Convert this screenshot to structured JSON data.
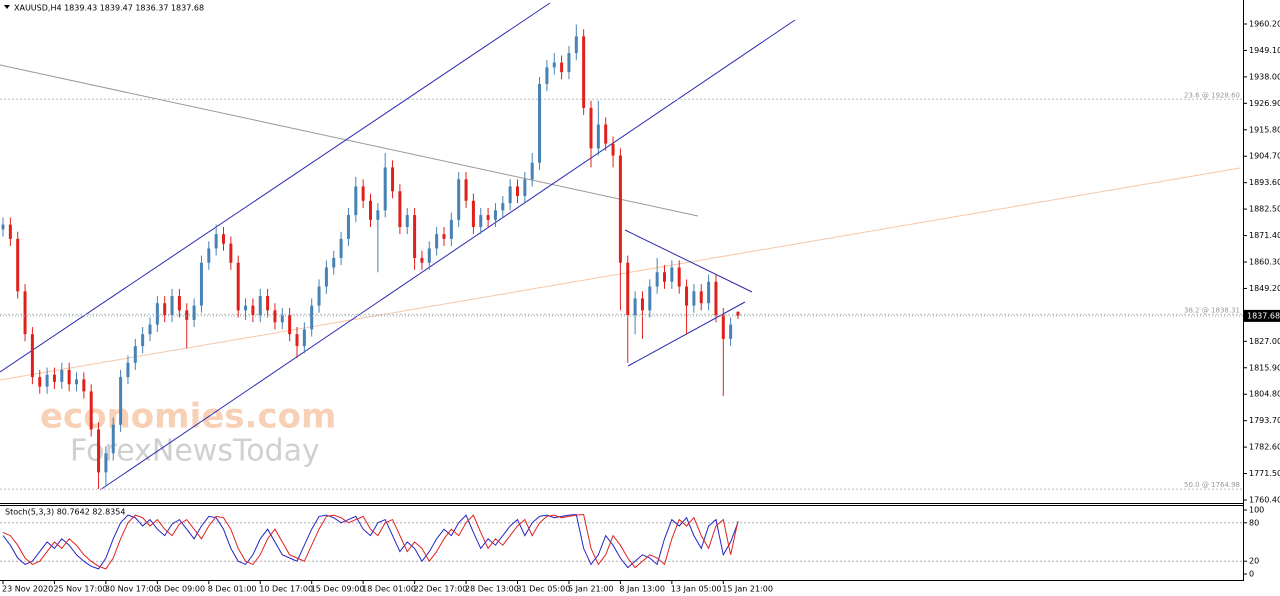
{
  "chart_data": [
    {
      "type": "candlestick",
      "title": "XAUUSD,H4  1839.43 1839.47 1836.37 1837.68",
      "watermark": [
        "economies.com",
        "ForexNewsToday"
      ],
      "up_color": "#4682b4",
      "down_color": "#e0201b",
      "categories": [
        "23 Nov 2020",
        null,
        null,
        null,
        null,
        null,
        null,
        "25 Nov 17:00",
        null,
        null,
        null,
        null,
        null,
        null,
        "30 Nov 17:00",
        null,
        null,
        null,
        null,
        null,
        null,
        "3 Dec 09:00",
        null,
        null,
        null,
        null,
        null,
        null,
        "8 Dec 01:00",
        null,
        null,
        null,
        null,
        null,
        null,
        "10 Dec 17:00",
        null,
        null,
        null,
        null,
        null,
        null,
        "15 Dec 09:00",
        null,
        null,
        null,
        null,
        null,
        null,
        "18 Dec 01:00",
        null,
        null,
        null,
        null,
        null,
        null,
        "22 Dec 17:00",
        null,
        null,
        null,
        null,
        null,
        null,
        "28 Dec 13:00",
        null,
        null,
        null,
        null,
        null,
        null,
        "31 Dec 05:00",
        null,
        null,
        null,
        null,
        null,
        null,
        "5 Jan 21:00",
        null,
        null,
        null,
        null,
        null,
        null,
        "8 Jan 13:00",
        null,
        null,
        null,
        null,
        null,
        null,
        "13 Jan 05:00",
        null,
        null,
        null,
        null,
        null,
        null,
        "15 Jan 21:00",
        null,
        null
      ],
      "open": [
        1874,
        1876,
        1870,
        1848,
        1830,
        1812,
        1808,
        1813,
        1810,
        1815,
        1809,
        1811,
        1806,
        1790,
        1772,
        1780,
        1792,
        1812,
        1818,
        1825,
        1830,
        1834,
        1843,
        1838,
        1846,
        1840,
        1836,
        1842,
        1860,
        1866,
        1872,
        1868,
        1860,
        1840,
        1842,
        1838,
        1846,
        1840,
        1835,
        1838,
        1830,
        1825,
        1832,
        1842,
        1850,
        1858,
        1862,
        1870,
        1880,
        1892,
        1886,
        1878,
        1882,
        1900,
        1890,
        1875,
        1880,
        1862,
        1860,
        1866,
        1872,
        1870,
        1878,
        1895,
        1886,
        1875,
        1880,
        1878,
        1882,
        1885,
        1892,
        1888,
        1895,
        1902,
        1935,
        1942,
        1944,
        1940,
        1948,
        1955,
        1925,
        1908,
        1918,
        1910,
        1905,
        1860,
        1838,
        1845,
        1840,
        1850,
        1856,
        1852,
        1858,
        1850,
        1842,
        1848,
        1843,
        1852,
        1838,
        1828,
        1839.43
      ],
      "high": [
        1879,
        1879,
        1873,
        1851,
        1833,
        1815,
        1816,
        1816,
        1818,
        1818,
        1814,
        1814,
        1809,
        1793,
        1783,
        1795,
        1815,
        1821,
        1828,
        1833,
        1837,
        1846,
        1846,
        1849,
        1849,
        1843,
        1845,
        1863,
        1869,
        1876,
        1875,
        1871,
        1863,
        1845,
        1845,
        1849,
        1849,
        1843,
        1841,
        1841,
        1833,
        1835,
        1845,
        1853,
        1861,
        1865,
        1873,
        1883,
        1896,
        1895,
        1889,
        1885,
        1906,
        1903,
        1893,
        1883,
        1883,
        1865,
        1869,
        1875,
        1875,
        1881,
        1898,
        1898,
        1889,
        1883,
        1883,
        1885,
        1888,
        1895,
        1895,
        1898,
        1906,
        1938,
        1945,
        1948,
        1947,
        1951,
        1960,
        1958,
        1928,
        1928,
        1921,
        1913,
        1908,
        1863,
        1848,
        1848,
        1853,
        1862,
        1859,
        1861,
        1861,
        1853,
        1851,
        1851,
        1855,
        1855,
        1841,
        1837,
        1839.47
      ],
      "low": [
        1871,
        1867,
        1845,
        1827,
        1809,
        1805,
        1805,
        1807,
        1807,
        1806,
        1806,
        1803,
        1787,
        1765,
        1766,
        1777,
        1789,
        1809,
        1815,
        1822,
        1827,
        1831,
        1835,
        1835,
        1837,
        1824,
        1833,
        1839,
        1857,
        1863,
        1865,
        1857,
        1837,
        1836,
        1835,
        1835,
        1837,
        1832,
        1832,
        1827,
        1820,
        1822,
        1829,
        1839,
        1847,
        1855,
        1859,
        1867,
        1877,
        1883,
        1875,
        1856,
        1879,
        1887,
        1872,
        1872,
        1857,
        1857,
        1857,
        1863,
        1867,
        1867,
        1875,
        1883,
        1872,
        1872,
        1875,
        1875,
        1879,
        1882,
        1885,
        1885,
        1892,
        1899,
        1932,
        1939,
        1937,
        1937,
        1945,
        1922,
        1900,
        1905,
        1907,
        1900,
        1840,
        1818,
        1830,
        1828,
        1837,
        1847,
        1849,
        1849,
        1847,
        1830,
        1839,
        1840,
        1840,
        1835,
        1804,
        1825,
        1836.37
      ],
      "close": [
        1876,
        1870,
        1848,
        1830,
        1812,
        1808,
        1813,
        1810,
        1815,
        1809,
        1811,
        1806,
        1790,
        1772,
        1780,
        1792,
        1812,
        1818,
        1825,
        1830,
        1834,
        1843,
        1838,
        1846,
        1840,
        1836,
        1842,
        1860,
        1866,
        1872,
        1868,
        1860,
        1840,
        1842,
        1838,
        1846,
        1840,
        1835,
        1838,
        1830,
        1825,
        1832,
        1842,
        1850,
        1858,
        1862,
        1870,
        1880,
        1892,
        1886,
        1878,
        1882,
        1900,
        1890,
        1875,
        1880,
        1862,
        1860,
        1866,
        1872,
        1870,
        1878,
        1895,
        1886,
        1875,
        1880,
        1878,
        1882,
        1885,
        1892,
        1888,
        1895,
        1902,
        1935,
        1942,
        1944,
        1940,
        1948,
        1955,
        1925,
        1908,
        1918,
        1910,
        1905,
        1860,
        1838,
        1845,
        1840,
        1850,
        1856,
        1852,
        1858,
        1850,
        1842,
        1848,
        1843,
        1852,
        1838,
        1828,
        1834,
        1837.68
      ],
      "ylim": [
        1759.14,
        1970.27
      ],
      "yticks": [
        {
          "value": 1960.2,
          "label": "1960.20"
        },
        {
          "value": 1949.1,
          "label": "1949.10"
        },
        {
          "value": 1938,
          "label": "1938.00"
        },
        {
          "value": 1926.9,
          "label": "1926.90"
        },
        {
          "value": 1915.8,
          "label": "1915.80"
        },
        {
          "value": 1904.7,
          "label": "1904.70"
        },
        {
          "value": 1893.6,
          "label": "1893.60"
        },
        {
          "value": 1882.5,
          "label": "1882.50"
        },
        {
          "value": 1871.4,
          "label": "1871.40"
        },
        {
          "value": 1860.3,
          "label": "1860.30"
        },
        {
          "value": 1849.2,
          "label": "1849.20"
        },
        {
          "value": 1827,
          "label": "1827.00"
        },
        {
          "value": 1815.9,
          "label": "1815.90"
        },
        {
          "value": 1804.8,
          "label": "1804.80"
        },
        {
          "value": 1793.7,
          "label": "1793.70"
        },
        {
          "value": 1782.6,
          "label": "1782.60"
        },
        {
          "value": 1771.5,
          "label": "1771.50"
        },
        {
          "value": 1760.4,
          "label": "1760.40"
        }
      ],
      "fib_levels": [
        {
          "value": 1928.6,
          "label": "23.6 @ 1928.60"
        },
        {
          "value": 1838.31,
          "label": "38.2 @ 1838.31"
        },
        {
          "value": 1764.98,
          "label": "50.0 @ 1764.98"
        }
      ],
      "last_price": 1837.68
    },
    {
      "type": "line",
      "title": "Stoch(5,3,3) 80.7642 82.8354",
      "series": [
        {
          "color": "#2424c8",
          "values": [
            60,
            45,
            25,
            15,
            20,
            35,
            50,
            40,
            55,
            45,
            30,
            20,
            12,
            8,
            25,
            55,
            80,
            92,
            88,
            75,
            85,
            70,
            60,
            78,
            85,
            70,
            55,
            75,
            90,
            88,
            70,
            40,
            20,
            15,
            30,
            55,
            70,
            50,
            30,
            25,
            20,
            45,
            70,
            90,
            92,
            88,
            80,
            85,
            90,
            70,
            60,
            80,
            85,
            60,
            35,
            50,
            40,
            20,
            35,
            55,
            70,
            60,
            80,
            92,
            65,
            40,
            55,
            45,
            60,
            75,
            85,
            60,
            80,
            90,
            92,
            88,
            90,
            92,
            93,
            40,
            15,
            30,
            60,
            45,
            25,
            10,
            20,
            30,
            25,
            15,
            55,
            85,
            75,
            88,
            60,
            40,
            75,
            85,
            30,
            50,
            80.76
          ]
        },
        {
          "color": "#e02020",
          "values": [
            65,
            60,
            45,
            25,
            15,
            20,
            35,
            50,
            40,
            55,
            45,
            30,
            20,
            12,
            8,
            25,
            55,
            80,
            92,
            88,
            75,
            85,
            70,
            60,
            78,
            85,
            70,
            55,
            75,
            90,
            88,
            70,
            40,
            20,
            15,
            30,
            55,
            70,
            50,
            30,
            25,
            20,
            45,
            70,
            90,
            92,
            88,
            80,
            85,
            90,
            70,
            60,
            80,
            85,
            60,
            35,
            50,
            40,
            20,
            35,
            55,
            70,
            60,
            80,
            92,
            65,
            40,
            55,
            45,
            60,
            75,
            85,
            60,
            80,
            90,
            92,
            88,
            90,
            92,
            93,
            40,
            15,
            30,
            60,
            45,
            25,
            10,
            20,
            30,
            25,
            15,
            55,
            85,
            75,
            88,
            60,
            40,
            75,
            85,
            30,
            82.84
          ]
        }
      ],
      "levels": [
        80,
        20
      ],
      "ylim": [
        -9.38,
        106.25
      ],
      "yticks": [
        100,
        80,
        20,
        0
      ]
    }
  ]
}
